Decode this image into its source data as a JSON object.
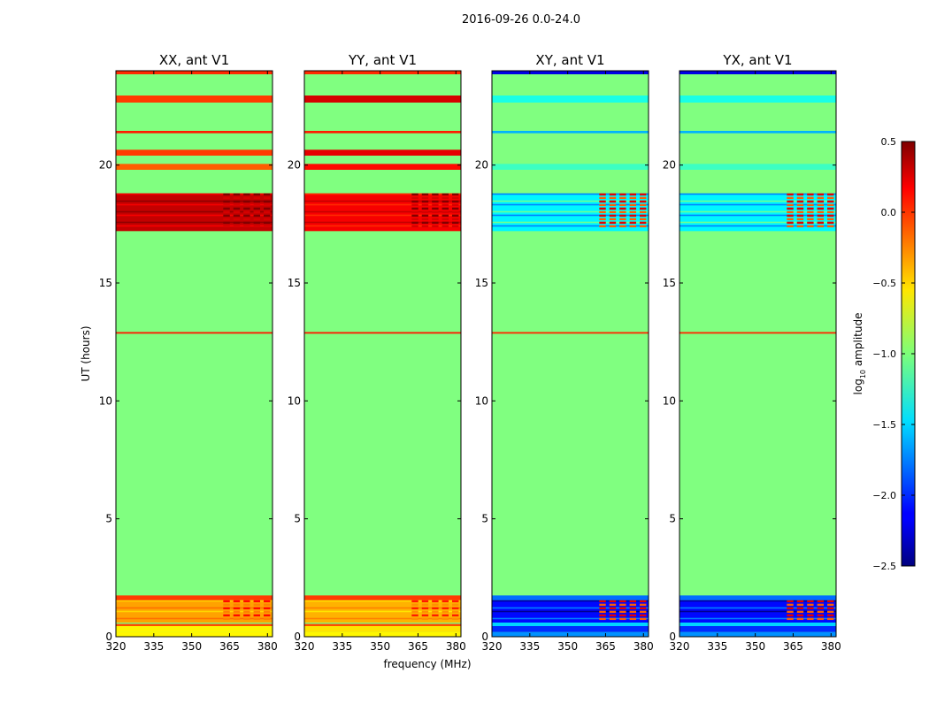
{
  "figure": {
    "suptitle": "2016-09-26 0.0-24.0",
    "ylabel": "UT (hours)",
    "xlabel": "frequency (MHz)"
  },
  "colorbar": {
    "label_main": "log",
    "label_sub": "10",
    "label_tail": " amplitude",
    "ticks": [
      "0.5",
      "0.0",
      "−0.5",
      "−1.0",
      "−1.5",
      "−2.0",
      "−2.5"
    ],
    "tick_values": [
      0.5,
      0.0,
      -0.5,
      -1.0,
      -1.5,
      -2.0,
      -2.5
    ],
    "range": [
      -2.5,
      0.5
    ],
    "colormap": "jet"
  },
  "chart_data": {
    "type": "heatmap",
    "x": {
      "label": "frequency (MHz)",
      "range": [
        320,
        382
      ],
      "ticks": [
        320,
        335,
        350,
        365,
        380
      ],
      "tick_labels": [
        "320",
        "335",
        "350",
        "365",
        "380"
      ]
    },
    "y": {
      "label": "UT (hours)",
      "range": [
        0,
        24
      ],
      "ticks": [
        0,
        5,
        10,
        15,
        20
      ],
      "tick_labels": [
        "0",
        "5",
        "10",
        "15",
        "20"
      ]
    },
    "background_value": -1.0,
    "panels": [
      {
        "title": "XX, ant V1",
        "kind": "parallel",
        "bands": [
          {
            "t0": 0.0,
            "t1": 0.2,
            "v": -0.6
          },
          {
            "t0": 0.2,
            "t1": 0.45,
            "v": -0.6
          },
          {
            "t0": 0.45,
            "t1": 0.55,
            "v": -0.1
          },
          {
            "t0": 0.55,
            "t1": 0.6,
            "v": -1.0
          },
          {
            "t0": 0.6,
            "t1": 1.55,
            "v": -0.35
          },
          {
            "t0": 1.55,
            "t1": 1.75,
            "v": -0.05
          },
          {
            "t0": 12.85,
            "t1": 12.92,
            "v": 0.05
          },
          {
            "t0": 17.2,
            "t1": 18.8,
            "v": 0.3
          },
          {
            "t0": 19.8,
            "t1": 20.05,
            "v": -0.15
          },
          {
            "t0": 20.4,
            "t1": 20.65,
            "v": -0.05
          },
          {
            "t0": 21.35,
            "t1": 21.45,
            "v": 0.05
          },
          {
            "t0": 22.65,
            "t1": 22.95,
            "v": -0.05
          },
          {
            "t0": 23.85,
            "t1": 24.0,
            "v": 0.0
          }
        ]
      },
      {
        "title": "YY, ant V1",
        "kind": "parallel",
        "bands": [
          {
            "t0": 0.0,
            "t1": 0.2,
            "v": -0.6
          },
          {
            "t0": 0.2,
            "t1": 0.45,
            "v": -0.55
          },
          {
            "t0": 0.45,
            "t1": 0.55,
            "v": -0.1
          },
          {
            "t0": 0.55,
            "t1": 0.6,
            "v": -1.0
          },
          {
            "t0": 0.6,
            "t1": 1.55,
            "v": -0.4
          },
          {
            "t0": 1.55,
            "t1": 1.75,
            "v": -0.05
          },
          {
            "t0": 12.85,
            "t1": 12.92,
            "v": 0.05
          },
          {
            "t0": 17.2,
            "t1": 18.8,
            "v": 0.15
          },
          {
            "t0": 19.8,
            "t1": 20.05,
            "v": 0.1
          },
          {
            "t0": 20.4,
            "t1": 20.65,
            "v": 0.2
          },
          {
            "t0": 21.35,
            "t1": 21.45,
            "v": 0.05
          },
          {
            "t0": 22.65,
            "t1": 22.95,
            "v": 0.25
          },
          {
            "t0": 23.85,
            "t1": 24.0,
            "v": 0.0
          }
        ]
      },
      {
        "title": "XY, ant V1",
        "kind": "cross",
        "bands": [
          {
            "t0": 0.0,
            "t1": 0.2,
            "v": -1.7
          },
          {
            "t0": 0.2,
            "t1": 0.45,
            "v": -2.0
          },
          {
            "t0": 0.45,
            "t1": 0.6,
            "v": -1.5
          },
          {
            "t0": 0.6,
            "t1": 1.55,
            "v": -2.1
          },
          {
            "t0": 1.55,
            "t1": 1.75,
            "v": -1.8
          },
          {
            "t0": 12.85,
            "t1": 12.92,
            "v": 0.0
          },
          {
            "t0": 17.2,
            "t1": 18.8,
            "v": -1.4
          },
          {
            "t0": 19.8,
            "t1": 20.05,
            "v": -1.2
          },
          {
            "t0": 20.4,
            "t1": 20.65,
            "v": -1.0
          },
          {
            "t0": 21.35,
            "t1": 21.45,
            "v": -1.6
          },
          {
            "t0": 22.65,
            "t1": 22.95,
            "v": -1.3
          },
          {
            "t0": 23.85,
            "t1": 24.0,
            "v": -2.2
          }
        ]
      },
      {
        "title": "YX, ant V1",
        "kind": "cross",
        "bands": [
          {
            "t0": 0.0,
            "t1": 0.2,
            "v": -1.7
          },
          {
            "t0": 0.2,
            "t1": 0.45,
            "v": -2.0
          },
          {
            "t0": 0.45,
            "t1": 0.6,
            "v": -1.5
          },
          {
            "t0": 0.6,
            "t1": 1.55,
            "v": -2.1
          },
          {
            "t0": 1.55,
            "t1": 1.75,
            "v": -1.8
          },
          {
            "t0": 12.85,
            "t1": 12.92,
            "v": 0.0
          },
          {
            "t0": 17.2,
            "t1": 18.8,
            "v": -1.4
          },
          {
            "t0": 19.8,
            "t1": 20.05,
            "v": -1.2
          },
          {
            "t0": 20.4,
            "t1": 20.65,
            "v": -1.0
          },
          {
            "t0": 21.35,
            "t1": 21.45,
            "v": -1.6
          },
          {
            "t0": 22.65,
            "t1": 22.95,
            "v": -1.3
          },
          {
            "t0": 23.85,
            "t1": 24.0,
            "v": -2.2
          }
        ]
      }
    ]
  }
}
